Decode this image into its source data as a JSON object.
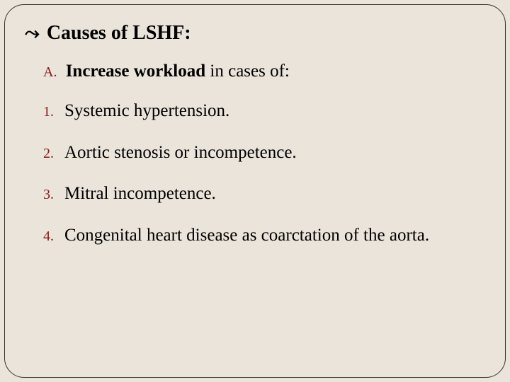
{
  "slide": {
    "background_color": "#eae4db",
    "border_color": "#333333",
    "border_radius": 28,
    "bullet_glyph": "⤳",
    "title": "Causes of LSHF:",
    "title_fontsize": 28,
    "title_fontweight": "bold",
    "subheading": {
      "marker": "A.",
      "marker_color": "#8a1a1a",
      "bold_part": "Increase workload",
      "rest_part": " in cases of:"
    },
    "items": [
      {
        "marker": "1.",
        "text": "Systemic hypertension."
      },
      {
        "marker": "2.",
        "text": "Aortic stenosis or incompetence."
      },
      {
        "marker": "3.",
        "text": "Mitral incompetence."
      },
      {
        "marker": "4.",
        "text": "Congenital heart disease as coarctation of the aorta."
      }
    ],
    "item_fontsize": 25,
    "marker_color": "#8a1a1a",
    "text_color": "#000000",
    "font_family": "Georgia, 'Times New Roman', serif"
  }
}
